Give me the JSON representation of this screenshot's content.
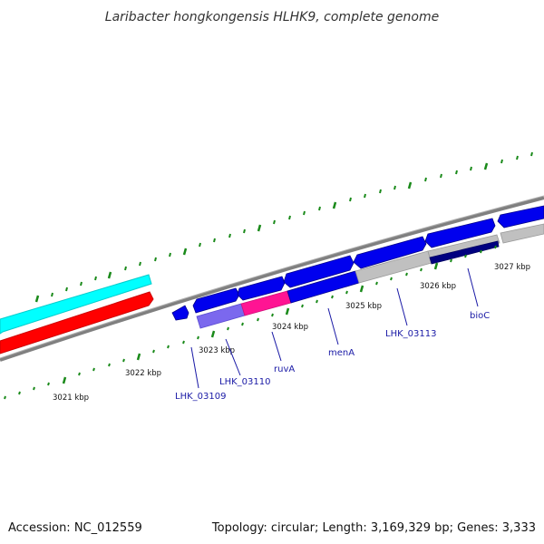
{
  "title": "Laribacter hongkongensis HLHK9, complete genome",
  "accession": "Accession: NC_012559",
  "summary": "Topology: circular; Length: 3,169,329 bp; Genes: 3,333",
  "colors": {
    "background": "#ffffff",
    "backbone": "#808080",
    "tick": "#1a8a1a",
    "forward_track": "#00ffff",
    "reverse_track": "#ff0000",
    "gene_cds": "#0000ee",
    "gene_slate": "#7b68ee",
    "gene_pink": "#ff1493",
    "gene_gray": "#c0c0c0",
    "gene_navy": "#000080",
    "label": "#1a1aa6"
  },
  "scale_labels": [
    "3021 kbp",
    "3022 kbp",
    "3023 kbp",
    "3024 kbp",
    "3025 kbp",
    "3026 kbp",
    "3027 kbp"
  ],
  "gene_labels": [
    "LHK_03109",
    "LHK_03110",
    "ruvA",
    "menA",
    "LHK_03113",
    "bioC"
  ]
}
